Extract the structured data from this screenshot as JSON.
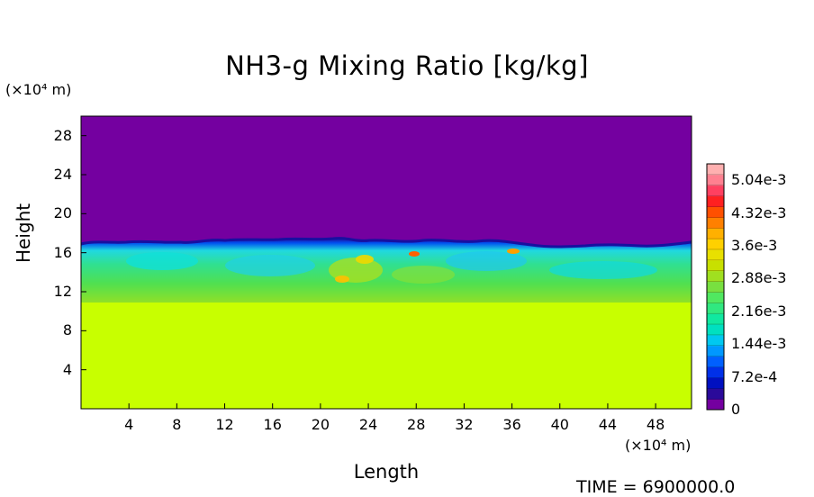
{
  "chart_data": {
    "type": "heatmap",
    "title": "NH3-g Mixing Ratio [kg/kg]",
    "xlabel": "Length",
    "ylabel": "Height",
    "x_unit": "(×10⁴ m)",
    "y_unit": "(×10⁴ m)",
    "xlim": [
      0,
      51
    ],
    "ylim": [
      0,
      30
    ],
    "x_ticks": [
      4,
      8,
      12,
      16,
      20,
      24,
      28,
      32,
      36,
      40,
      44,
      48
    ],
    "y_ticks": [
      4,
      8,
      12,
      16,
      20,
      24,
      28
    ],
    "colorbar": {
      "range": [
        0,
        0.0054
      ],
      "tick_labels": [
        "5.04e-3",
        "4.32e-3",
        "3.6e-3",
        "2.88e-3",
        "2.16e-3",
        "1.44e-3",
        "7.2e-4",
        "0"
      ],
      "tick_values": [
        0.00504,
        0.00432,
        0.0036,
        0.00288,
        0.00216,
        0.00144,
        0.00072,
        0
      ],
      "colors": [
        "#7400a0",
        "#2a0a9a",
        "#0010c0",
        "#0030e8",
        "#0060ff",
        "#0098ff",
        "#00c8f0",
        "#00e0c0",
        "#10e8a0",
        "#30e880",
        "#50e860",
        "#78e040",
        "#a0e020",
        "#c8e000",
        "#e8e000",
        "#ffd000",
        "#ffb000",
        "#ff8000",
        "#ff5000",
        "#ff2020",
        "#ff4060",
        "#ff8090",
        "#ffb0b0"
      ]
    },
    "regions": [
      {
        "description": "upper atmosphere",
        "y_range": [
          16.5,
          30
        ],
        "value": 0
      },
      {
        "description": "turbulent mixing layer",
        "y_range": [
          10,
          17
        ],
        "value_range": [
          0.0018,
          0.0036
        ]
      },
      {
        "description": "lower well-mixed layer",
        "y_range": [
          0,
          10
        ],
        "value": 0.0036
      }
    ],
    "annotation": "TIME = 6900000.0"
  }
}
